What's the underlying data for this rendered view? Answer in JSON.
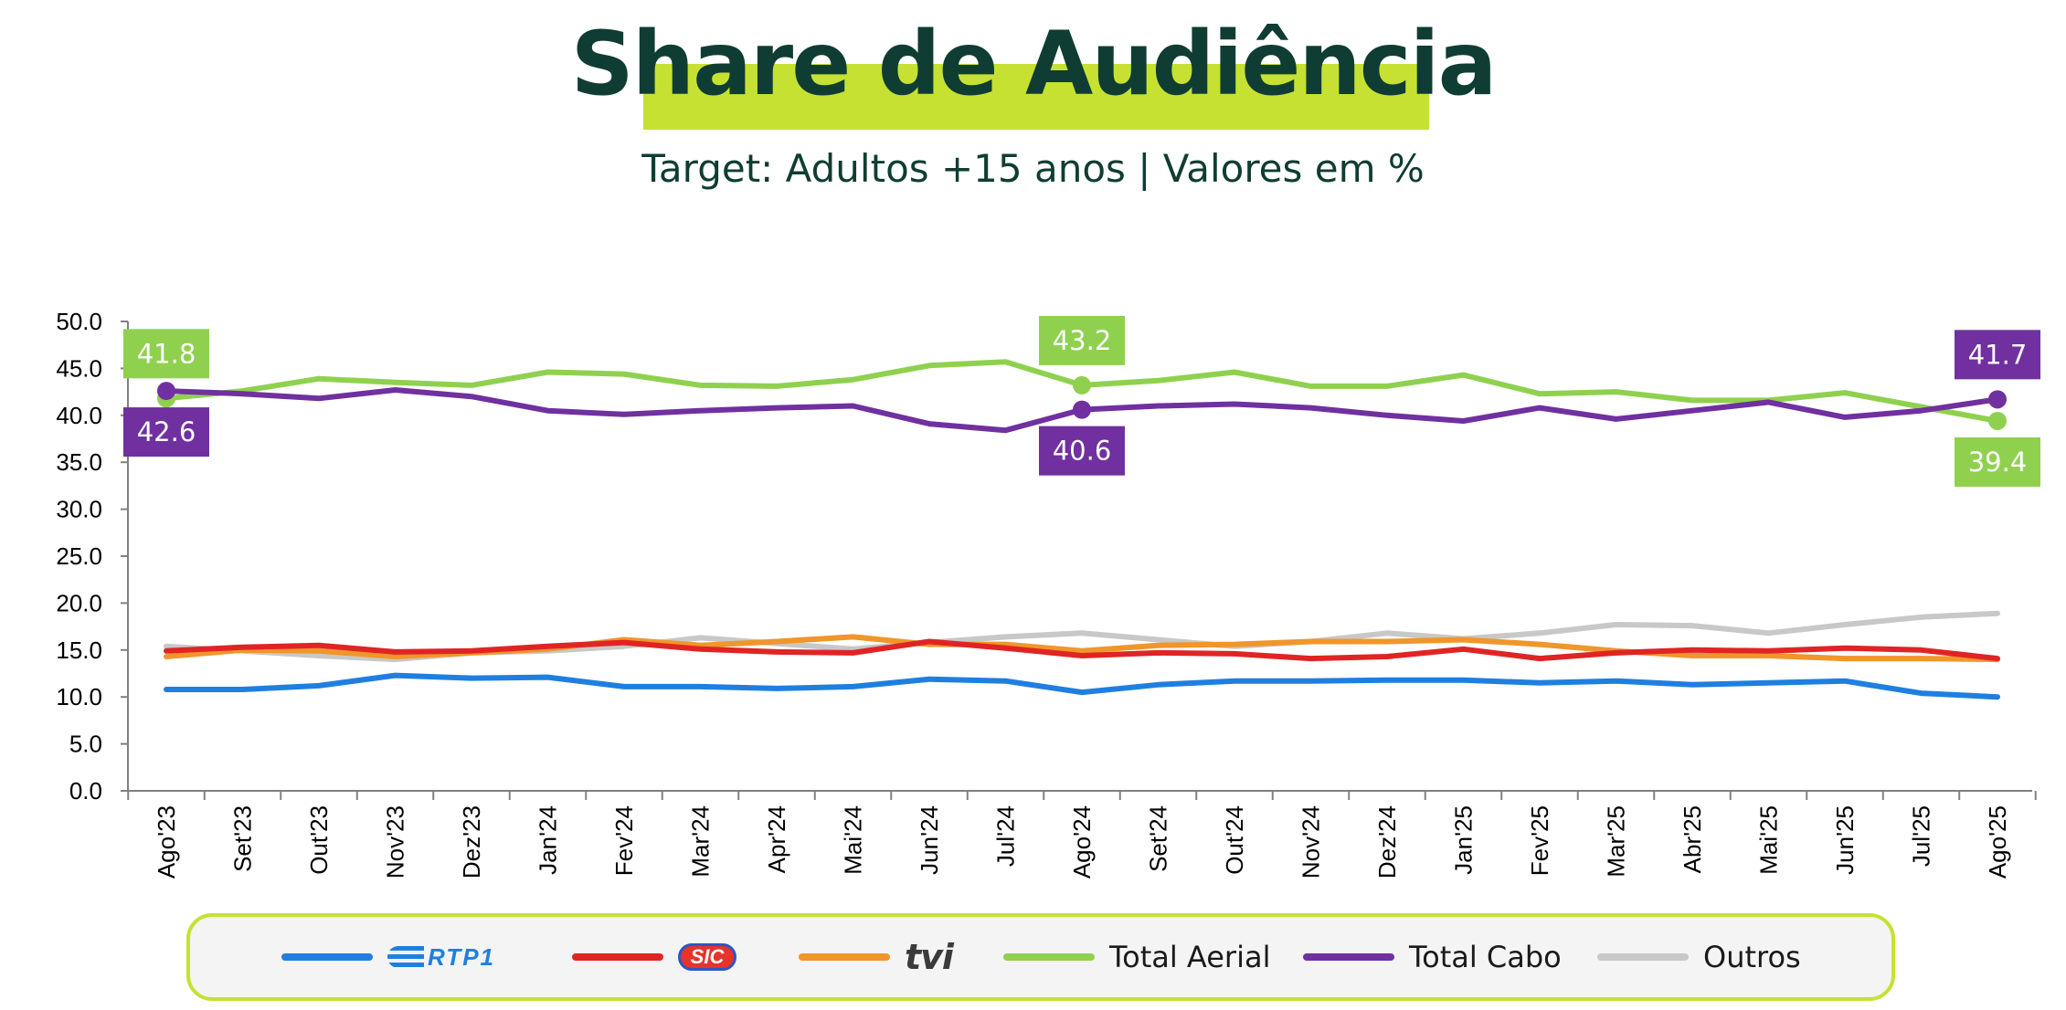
{
  "title": "Share de Audiência",
  "subtitle": "Target: Adultos +15 anos | Valores em %",
  "colors": {
    "rtp1": "#1f7fe0",
    "sic": "#e02424",
    "tvi": "#f0962a",
    "aerial": "#8fd14f",
    "cabo": "#7030a0",
    "outros": "#c8c8c8",
    "title_highlight": "#c6e132",
    "title_text": "#0f3d33"
  },
  "legend": {
    "rtp1_logo": "RTP1",
    "sic_logo": "SIC",
    "tvi_logo": "tvi",
    "aerial": "Total Aerial",
    "cabo": "Total Cabo",
    "outros": "Outros"
  },
  "chart_data": {
    "type": "line",
    "title": "Share de Audiência",
    "subtitle": "Target: Adultos +15 anos | Valores em %",
    "ylim": [
      0,
      50
    ],
    "yticks": [
      "0.0",
      "5.0",
      "10.0",
      "15.0",
      "20.0",
      "25.0",
      "30.0",
      "35.0",
      "40.0",
      "45.0",
      "50.0"
    ],
    "grid": false,
    "legend_position": "bottom",
    "categories": [
      "Ago'23",
      "Set'23",
      "Out'23",
      "Nov'23",
      "Dez'23",
      "Jan'24",
      "Fev'24",
      "Mar'24",
      "Apr'24",
      "Mai'24",
      "Jun'24",
      "Jul'24",
      "Ago'24",
      "Set'24",
      "Out'24",
      "Nov'24",
      "Dez'24",
      "Jan'25",
      "Fev'25",
      "Mar'25",
      "Abr'25",
      "Mai'25",
      "Jun'25",
      "Jul'25",
      "Ago'25"
    ],
    "series": [
      {
        "name": "RTP1",
        "color": "#1f7fe0",
        "values": [
          10.8,
          10.8,
          11.2,
          12.3,
          12.0,
          12.1,
          11.1,
          11.1,
          10.9,
          11.1,
          11.9,
          11.7,
          10.5,
          11.3,
          11.7,
          11.7,
          11.8,
          11.8,
          11.5,
          11.7,
          11.3,
          11.5,
          11.7,
          10.4,
          10.0
        ]
      },
      {
        "name": "SIC",
        "color": "#e02424",
        "values": [
          14.9,
          15.3,
          15.5,
          14.8,
          14.9,
          15.4,
          15.8,
          15.1,
          14.8,
          14.7,
          15.9,
          15.2,
          14.4,
          14.7,
          14.6,
          14.1,
          14.3,
          15.1,
          14.1,
          14.7,
          15.0,
          14.9,
          15.2,
          15.0,
          14.1
        ]
      },
      {
        "name": "TVI",
        "color": "#f0962a",
        "values": [
          14.3,
          15.0,
          14.9,
          14.3,
          14.7,
          15.1,
          16.1,
          15.5,
          15.9,
          16.4,
          15.6,
          15.6,
          14.9,
          15.5,
          15.6,
          15.9,
          15.9,
          16.1,
          15.6,
          14.9,
          14.4,
          14.4,
          14.1,
          14.1,
          14.0
        ]
      },
      {
        "name": "Total Aerial",
        "color": "#8fd14f",
        "values": [
          41.8,
          42.6,
          43.9,
          43.5,
          43.2,
          44.6,
          44.4,
          43.2,
          43.1,
          43.8,
          45.3,
          45.7,
          43.2,
          43.7,
          44.6,
          43.1,
          43.1,
          44.3,
          42.3,
          42.5,
          41.6,
          41.6,
          42.4,
          40.9,
          39.4
        ]
      },
      {
        "name": "Total Cabo",
        "color": "#7030a0",
        "values": [
          42.6,
          42.3,
          41.8,
          42.7,
          42.0,
          40.5,
          40.1,
          40.5,
          40.8,
          41.0,
          39.1,
          38.4,
          40.6,
          41.0,
          41.2,
          40.8,
          40.0,
          39.4,
          40.8,
          39.6,
          40.5,
          41.4,
          39.8,
          40.5,
          41.7
        ]
      },
      {
        "name": "Outros",
        "color": "#c8c8c8",
        "values": [
          15.4,
          14.9,
          14.4,
          14.0,
          14.7,
          14.9,
          15.4,
          16.3,
          15.7,
          15.1,
          15.8,
          16.4,
          16.8,
          16.1,
          15.4,
          15.9,
          16.8,
          16.2,
          16.8,
          17.7,
          17.6,
          16.8,
          17.7,
          18.5,
          18.9
        ]
      }
    ],
    "annotations": [
      {
        "series": "Total Aerial",
        "index": 0,
        "label": "41.8",
        "place": "above"
      },
      {
        "series": "Total Cabo",
        "index": 0,
        "label": "42.6",
        "place": "below"
      },
      {
        "series": "Total Aerial",
        "index": 12,
        "label": "43.2",
        "place": "above"
      },
      {
        "series": "Total Cabo",
        "index": 12,
        "label": "40.6",
        "place": "below"
      },
      {
        "series": "Total Cabo",
        "index": 24,
        "label": "41.7",
        "place": "above"
      },
      {
        "series": "Total Aerial",
        "index": 24,
        "label": "39.4",
        "place": "below"
      }
    ]
  }
}
